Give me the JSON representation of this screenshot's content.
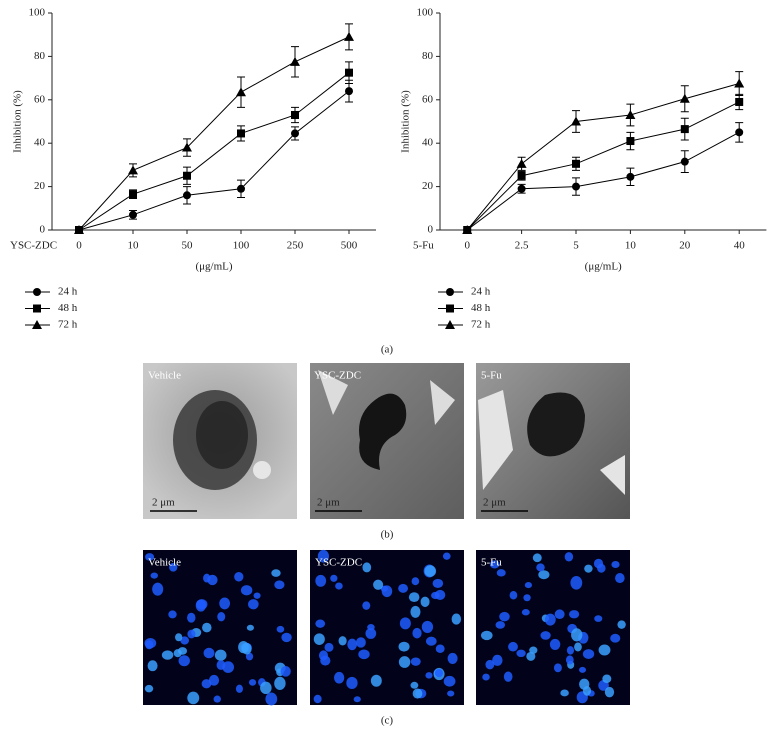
{
  "chart_data": [
    {
      "type": "line",
      "y_label": "Inhibition (%)",
      "x_title": "YSC-ZDC",
      "x_unit_label": "(μg/mL)",
      "categories": [
        "0",
        "10",
        "50",
        "100",
        "250",
        "500"
      ],
      "ylim": [
        0,
        100
      ],
      "yticks": [
        0,
        20,
        40,
        60,
        80,
        100
      ],
      "grid": false,
      "legend": "below",
      "series": [
        {
          "name": "24 h",
          "color": "#000000",
          "marker": "circle",
          "values": [
            0,
            7,
            16,
            19,
            44.5,
            64
          ],
          "errors": [
            0,
            2,
            4,
            4,
            3,
            5
          ]
        },
        {
          "name": "48 h",
          "color": "#000000",
          "marker": "square",
          "values": [
            0,
            16.5,
            25,
            44.5,
            53,
            72.5
          ],
          "errors": [
            0,
            2,
            4,
            3.5,
            3.5,
            5
          ]
        },
        {
          "name": "72 h",
          "color": "#000000",
          "marker": "triangle",
          "values": [
            0,
            27.5,
            38,
            63.5,
            77.5,
            89
          ],
          "errors": [
            0,
            3,
            4,
            7,
            7,
            6
          ]
        }
      ]
    },
    {
      "type": "line",
      "y_label": "Inhibition (%)",
      "x_title": "5-Fu",
      "x_unit_label": "(μg/mL)",
      "categories": [
        "0",
        "2.5",
        "5",
        "10",
        "20",
        "40"
      ],
      "ylim": [
        0,
        100
      ],
      "yticks": [
        0,
        20,
        40,
        60,
        80,
        100
      ],
      "grid": false,
      "legend": "below",
      "series": [
        {
          "name": "24 h",
          "color": "#000000",
          "marker": "circle",
          "values": [
            0,
            19,
            20,
            24.5,
            31.5,
            45
          ],
          "errors": [
            0,
            2,
            4,
            4,
            5,
            4.5
          ]
        },
        {
          "name": "48 h",
          "color": "#000000",
          "marker": "square",
          "values": [
            0,
            25,
            30.5,
            41,
            46.5,
            59
          ],
          "errors": [
            0,
            2,
            3,
            4,
            5,
            3.5
          ]
        },
        {
          "name": "72 h",
          "color": "#000000",
          "marker": "triangle",
          "values": [
            0,
            30.5,
            50,
            53,
            60.5,
            67.5
          ],
          "errors": [
            0,
            3,
            5,
            5,
            6,
            5.5
          ]
        }
      ]
    }
  ],
  "figure": {
    "panel_labels": [
      "(a)",
      "(b)",
      "(c)"
    ],
    "tem_images": [
      {
        "label": "Vehicle",
        "scale": "2 μm"
      },
      {
        "label": "YSC-ZDC",
        "scale": "2 μm"
      },
      {
        "label": "5-Fu",
        "scale": "2 μm"
      }
    ],
    "fluorescence_images": [
      {
        "label": "Vehicle"
      },
      {
        "label": "YSC-ZDC"
      },
      {
        "label": "5-Fu"
      }
    ]
  }
}
